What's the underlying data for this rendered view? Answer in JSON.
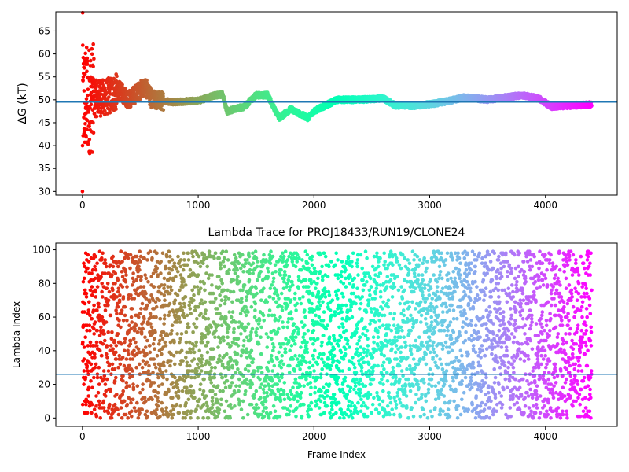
{
  "colors": {
    "ref_line": "#1f77b4",
    "colormap": "rainbow"
  },
  "chart_data": [
    {
      "type": "scatter",
      "title": "",
      "xlabel": "",
      "ylabel": "ΔG (kT)",
      "xlim": [
        -230,
        4620
      ],
      "ylim": [
        29.2,
        69.2
      ],
      "xticks": [
        0,
        1000,
        2000,
        3000,
        4000
      ],
      "yticks": [
        30,
        35,
        40,
        45,
        50,
        55,
        60,
        65
      ],
      "ref_line_y": 49.5,
      "n_points": 4400,
      "trace_keypoints": [
        {
          "x": 0,
          "y": 50.0
        },
        {
          "x": 200,
          "y": 50.5
        },
        {
          "x": 320,
          "y": 52.0
        },
        {
          "x": 400,
          "y": 50.0
        },
        {
          "x": 540,
          "y": 53.0
        },
        {
          "x": 600,
          "y": 50.0
        },
        {
          "x": 800,
          "y": 49.5
        },
        {
          "x": 1000,
          "y": 49.8
        },
        {
          "x": 1150,
          "y": 51.0
        },
        {
          "x": 1210,
          "y": 51.2
        },
        {
          "x": 1250,
          "y": 47.5
        },
        {
          "x": 1400,
          "y": 48.5
        },
        {
          "x": 1500,
          "y": 51.0
        },
        {
          "x": 1600,
          "y": 51.0
        },
        {
          "x": 1700,
          "y": 46.0
        },
        {
          "x": 1800,
          "y": 48.0
        },
        {
          "x": 1950,
          "y": 46.0
        },
        {
          "x": 2000,
          "y": 47.5
        },
        {
          "x": 2200,
          "y": 50.0
        },
        {
          "x": 2400,
          "y": 50.0
        },
        {
          "x": 2600,
          "y": 50.3
        },
        {
          "x": 2700,
          "y": 48.8
        },
        {
          "x": 2900,
          "y": 48.7
        },
        {
          "x": 3100,
          "y": 49.4
        },
        {
          "x": 3300,
          "y": 50.5
        },
        {
          "x": 3500,
          "y": 50.0
        },
        {
          "x": 3800,
          "y": 51.0
        },
        {
          "x": 3950,
          "y": 50.2
        },
        {
          "x": 4050,
          "y": 48.5
        },
        {
          "x": 4250,
          "y": 48.8
        },
        {
          "x": 4400,
          "y": 49.0
        }
      ]
    },
    {
      "type": "scatter",
      "title": "Lambda Trace for PROJ18433/RUN19/CLONE24",
      "xlabel": "Frame Index",
      "ylabel": "Lambda Index",
      "xlim": [
        -230,
        4620
      ],
      "ylim": [
        -5,
        104
      ],
      "xticks": [
        0,
        1000,
        2000,
        3000,
        4000
      ],
      "yticks": [
        0,
        20,
        40,
        60,
        80,
        100
      ],
      "ref_line_y": 26,
      "n_points": 4400,
      "y_range": [
        0,
        99
      ]
    }
  ]
}
